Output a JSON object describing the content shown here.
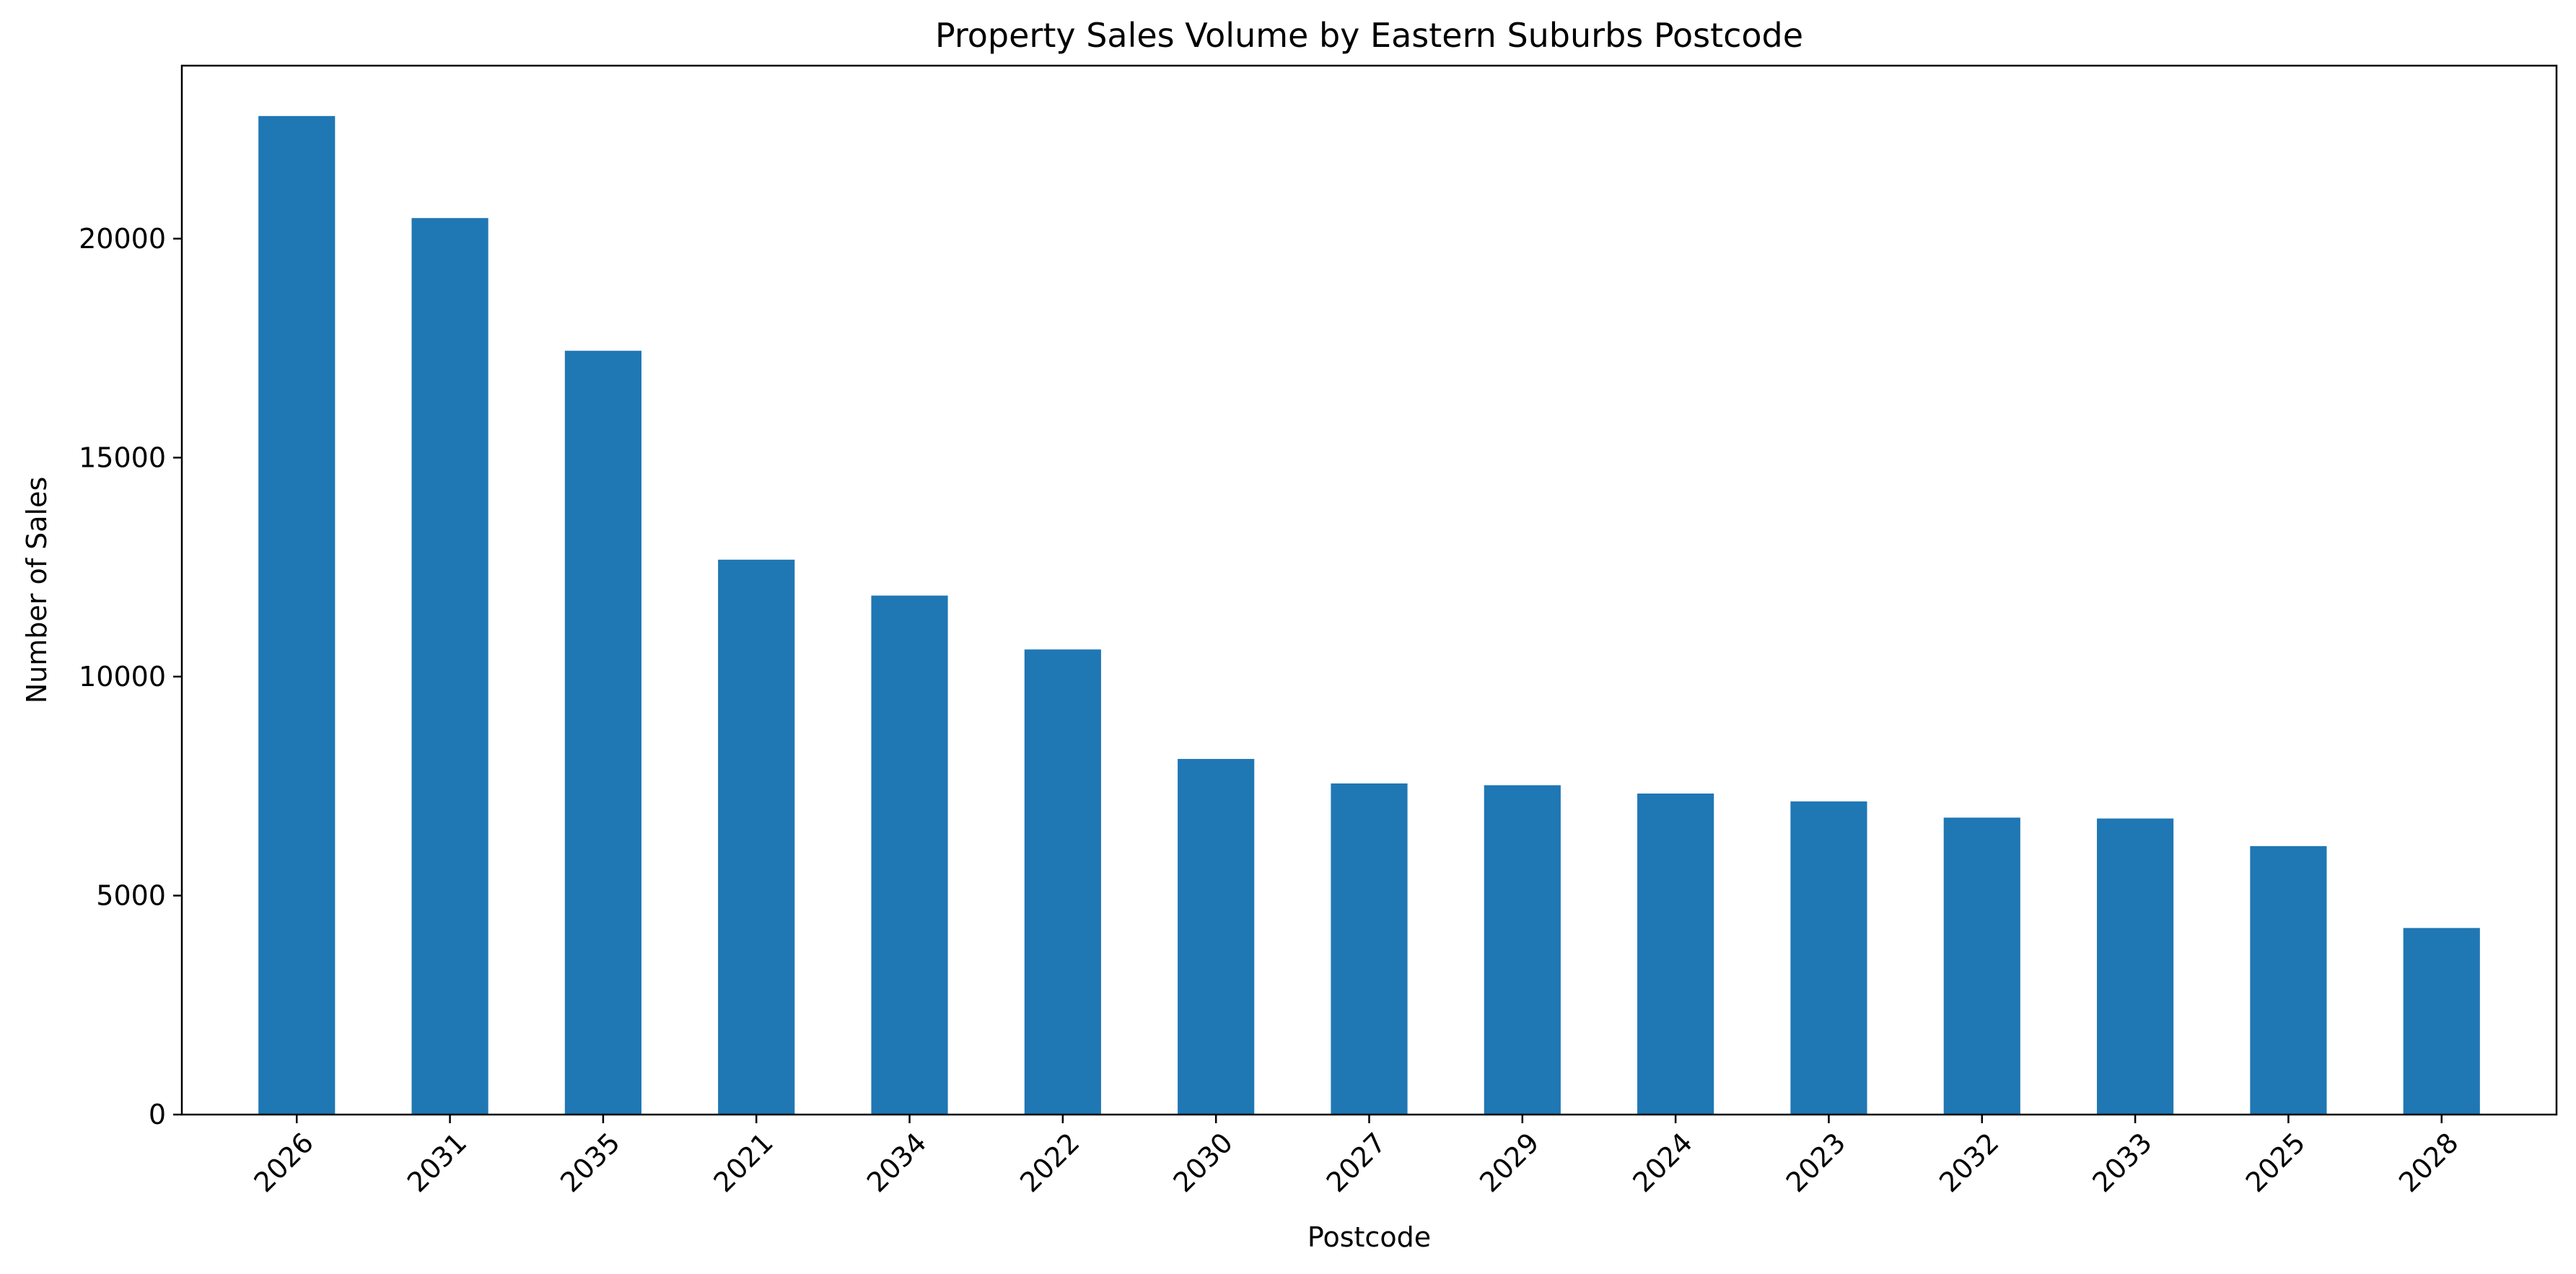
{
  "chart_data": {
    "type": "bar",
    "title": "Property Sales Volume by Eastern Suburbs Postcode",
    "xlabel": "Postcode",
    "ylabel": "Number of Sales",
    "categories": [
      "2026",
      "2031",
      "2035",
      "2021",
      "2034",
      "2022",
      "2030",
      "2027",
      "2029",
      "2024",
      "2023",
      "2032",
      "2033",
      "2025",
      "2028"
    ],
    "values": [
      22800,
      20470,
      17440,
      12670,
      11850,
      10620,
      8120,
      7560,
      7520,
      7330,
      7150,
      6780,
      6760,
      6130,
      4260
    ],
    "yticks": [
      0,
      5000,
      10000,
      15000,
      20000
    ],
    "ylim": [
      0,
      23950
    ],
    "grid": false,
    "legend": "none",
    "bar_color": "#1f77b4"
  }
}
